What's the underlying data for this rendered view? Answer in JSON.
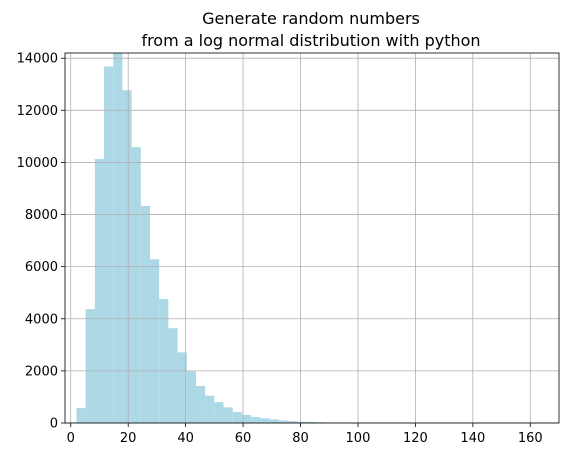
{
  "chart_data": {
    "type": "bar",
    "title": "Generate random numbers\nfrom a log normal distribution with python",
    "title_lines": [
      "Generate random numbers",
      "from a log normal distribution with python"
    ],
    "xlabel": "",
    "ylabel": "",
    "xlim": [
      -2,
      170
    ],
    "ylim": [
      0,
      14200
    ],
    "grid": true,
    "legend": "none",
    "bar_color": "#add8e6",
    "grid_color": "#b0b0b0",
    "x_ticks": [
      0,
      20,
      40,
      60,
      80,
      100,
      120,
      140,
      160
    ],
    "y_ticks": [
      0,
      2000,
      4000,
      6000,
      8000,
      10000,
      12000,
      14000
    ],
    "bin_edges": [
      2.0,
      5.2,
      8.4,
      11.6,
      14.8,
      18.0,
      21.2,
      24.4,
      27.6,
      30.8,
      34.0,
      37.2,
      40.4,
      43.6,
      46.8,
      50.0,
      53.2,
      56.4,
      59.6,
      62.8,
      66.0,
      69.2,
      72.4,
      75.6,
      78.8,
      82.0,
      85.2,
      88.4,
      91.6,
      94.8,
      98.0,
      101.2,
      104.4,
      107.6,
      110.8,
      114.0,
      117.2,
      120.4,
      123.6,
      126.8,
      130.0,
      133.2,
      136.4,
      139.6,
      142.8,
      146.0,
      149.2,
      152.4,
      155.6,
      158.8,
      162.0
    ],
    "values": [
      580,
      4370,
      10130,
      13680,
      14200,
      12770,
      10590,
      8330,
      6280,
      4760,
      3640,
      2710,
      1980,
      1420,
      1050,
      800,
      600,
      420,
      310,
      230,
      180,
      140,
      100,
      70,
      50,
      40,
      30,
      20,
      15,
      10,
      8,
      6,
      5,
      4,
      3,
      3,
      2,
      2,
      2,
      1,
      1,
      1,
      1,
      1,
      1,
      0,
      0,
      0,
      1,
      0
    ]
  }
}
